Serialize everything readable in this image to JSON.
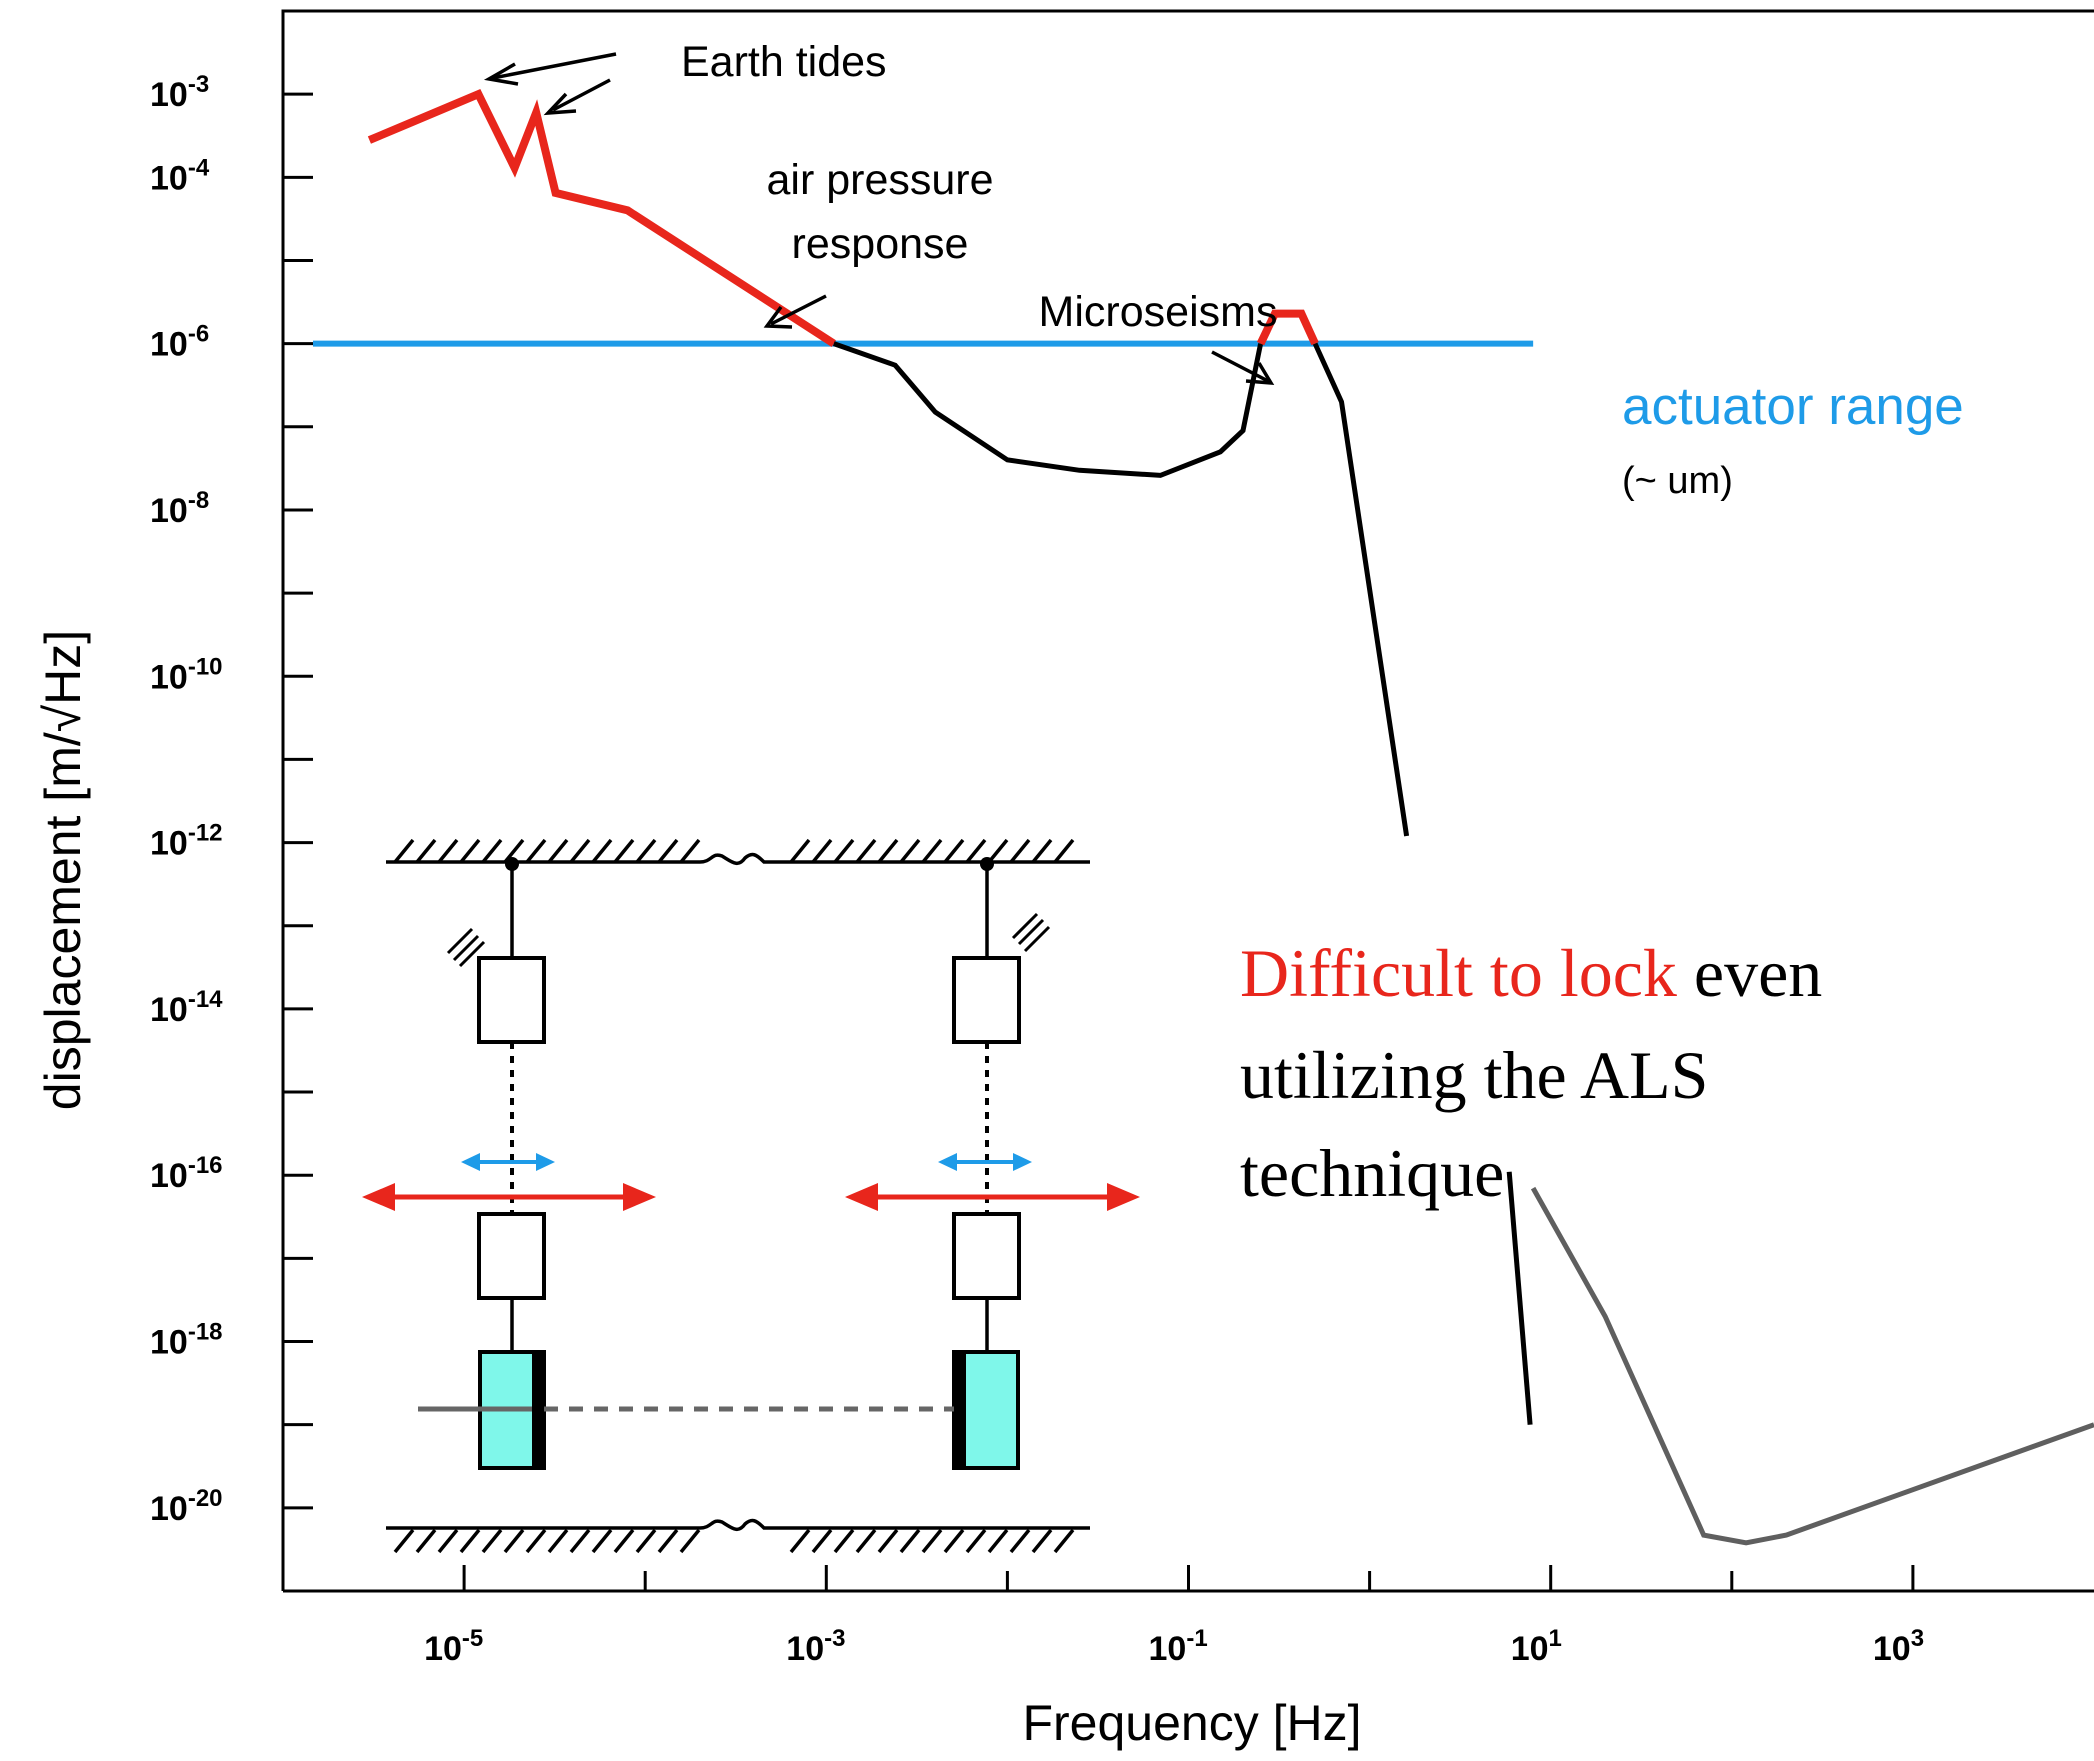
{
  "chart_data": {
    "type": "line",
    "title": "",
    "xlabel": "Frequency [Hz]",
    "ylabel": "displacement [m/√Hz]",
    "xscale": "log",
    "yscale": "log",
    "xlim": [
      1e-06,
      10000.0
    ],
    "ylim": [
      1e-21,
      0.01
    ],
    "xticks": [
      {
        "value": 1e-05,
        "base": "10",
        "exp": "-5"
      },
      {
        "value": 0.001,
        "base": "10",
        "exp": "-3"
      },
      {
        "value": 0.1,
        "base": "10",
        "exp": "-1"
      },
      {
        "value": 10.0,
        "base": "10",
        "exp": "1"
      },
      {
        "value": 1000.0,
        "base": "10",
        "exp": "3"
      }
    ],
    "yticks": [
      {
        "value": 0.001,
        "base": "10",
        "exp": "-3"
      },
      {
        "value": 0.0001,
        "base": "10",
        "exp": "-4"
      },
      {
        "value": 1e-06,
        "base": "10",
        "exp": "-6"
      },
      {
        "value": 1e-08,
        "base": "10",
        "exp": "-8"
      },
      {
        "value": 1e-10,
        "base": "10",
        "exp": "-10"
      },
      {
        "value": 1e-12,
        "base": "10",
        "exp": "-12"
      },
      {
        "value": 1e-14,
        "base": "10",
        "exp": "-14"
      },
      {
        "value": 1e-16,
        "base": "10",
        "exp": "-16"
      },
      {
        "value": 1e-18,
        "base": "10",
        "exp": "-18"
      },
      {
        "value": 1e-20,
        "base": "10",
        "exp": "-20"
      }
    ],
    "series": [
      {
        "color": "#e8261c",
        "points": [
          [
            3e-06,
            0.00028
          ],
          [
            1.2e-05,
            0.001
          ],
          [
            1.9e-05,
            0.00013
          ],
          [
            2.5e-05,
            0.0006
          ],
          [
            3.2e-05,
            6.5e-05
          ],
          [
            8e-05,
            4e-05
          ],
          [
            0.0011,
            1e-06
          ]
        ]
      },
      {
        "color": "#000000",
        "points": [
          [
            0.0011,
            1e-06
          ],
          [
            0.0024,
            5.5e-07
          ],
          [
            0.004,
            1.5e-07
          ],
          [
            0.01,
            4e-08
          ],
          [
            0.025,
            3e-08
          ],
          [
            0.07,
            2.6e-08
          ],
          [
            0.15,
            5e-08
          ],
          [
            0.2,
            9e-08
          ],
          [
            0.25,
            1e-06
          ]
        ]
      },
      {
        "color": "#e8261c",
        "points": [
          [
            0.25,
            1e-06
          ],
          [
            0.3,
            2.3e-06
          ],
          [
            0.42,
            2.3e-06
          ],
          [
            0.5,
            1e-06
          ]
        ]
      },
      {
        "color": "#000000",
        "points": [
          [
            0.5,
            1e-06
          ],
          [
            0.7,
            2e-07
          ],
          [
            1.6,
            1.2e-12
          ]
        ]
      },
      {
        "color": "#000000",
        "points": [
          [
            5.9,
            1.1e-16
          ],
          [
            7.7,
            1e-19
          ]
        ]
      },
      {
        "color": "#5f5f5f",
        "points": [
          [
            8.0,
            7e-17
          ],
          [
            20,
            2e-18
          ],
          [
            70,
            4.7e-21
          ],
          [
            120,
            3.8e-21
          ],
          [
            200,
            4.7e-21
          ],
          [
            10000.0,
            1e-19
          ]
        ]
      }
    ],
    "hline": {
      "y": 1e-06,
      "xmin": 1e-06,
      "xmax": 8.0,
      "color": "#1e9be8"
    },
    "annotations": {
      "earth_tides": "Earth tides",
      "air_pressure_1": "air pressure",
      "air_pressure_2": "response",
      "microseisms": "Microseisms",
      "actuator_range": "actuator range",
      "actuator_unit": "(~ um)",
      "difficult_red": "Difficult to lock",
      "difficult_black": " even",
      "difficult_line2": "utilizing the ALS",
      "difficult_line3": "technique"
    },
    "grid": false,
    "legend": "none"
  },
  "colors": {
    "red": "#e8261c",
    "blue": "#1e9be8",
    "black": "#000000",
    "gray": "#5f5f5f",
    "mirror": "#7ff7ea"
  }
}
